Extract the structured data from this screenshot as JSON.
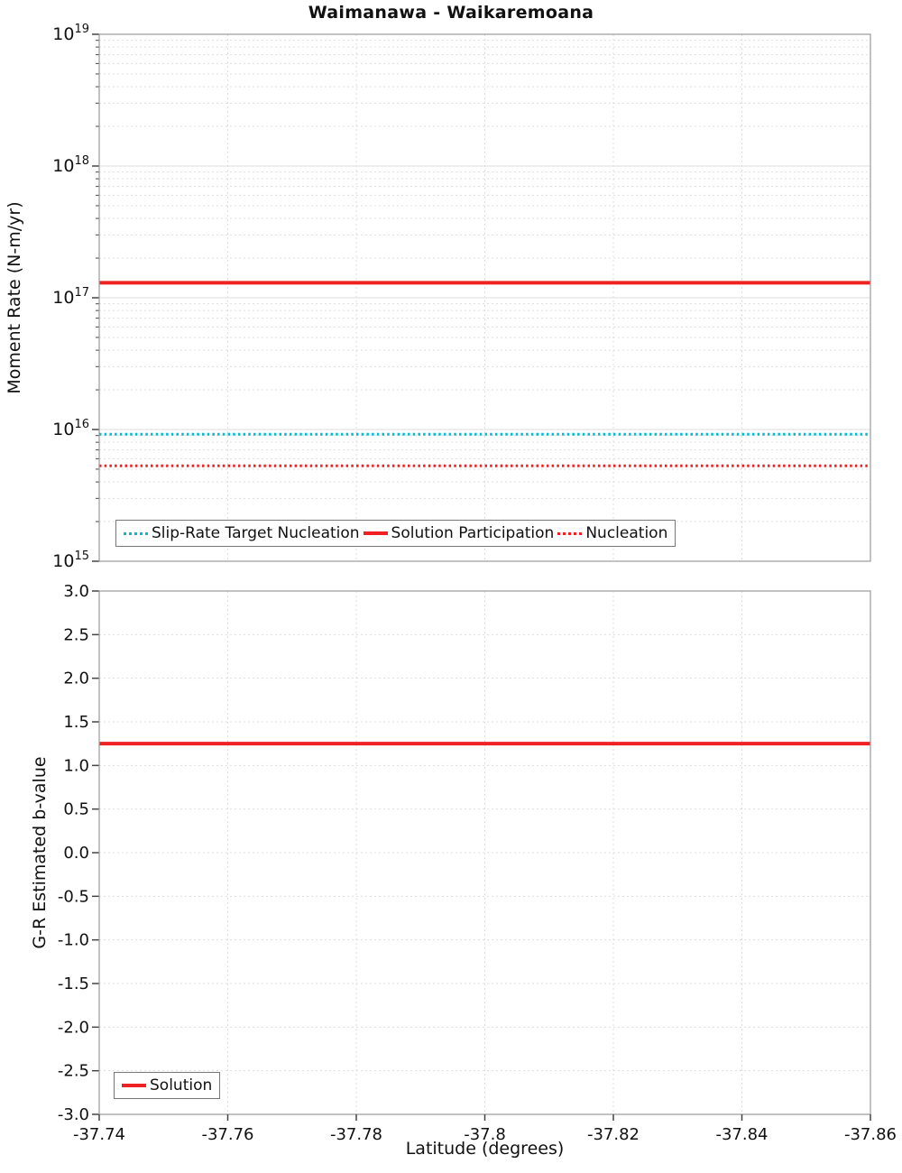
{
  "chart_data": [
    {
      "type": "line",
      "title": "Waimanawa - Waikaremoana",
      "ylabel": "Moment Rate (N-m/yr)",
      "y_scale": "log",
      "ylim": [
        1000000000000000.0,
        1e+19
      ],
      "y_exp_range": [
        15,
        19
      ],
      "x_range": [
        -37.74,
        -37.86
      ],
      "legend_position": "bottom-inside",
      "grid": true,
      "series": [
        {
          "name": "Slip-Rate Target Nucleation",
          "style": "dotted",
          "color": "#00bcd4",
          "value": 9200000000000000.0
        },
        {
          "name": "Solution Participation",
          "style": "solid",
          "color": "#ee2222",
          "value": 1.3e+17
        },
        {
          "name": "Nucleation",
          "style": "dotted",
          "color": "#ee2222",
          "value": 5300000000000000.0
        }
      ]
    },
    {
      "type": "line",
      "ylabel": "G-R Estimated b-value",
      "xlabel": "Latitude (degrees)",
      "ylim": [
        3.0,
        -3.0
      ],
      "y_tick_step": 0.5,
      "y_tick_labels": [
        "3.0",
        "2.5",
        "2.0",
        "1.5",
        "1.0",
        "0.5",
        "0.0",
        "-0.5",
        "-1.0",
        "-1.5",
        "-2.0",
        "-2.5",
        "-3.0"
      ],
      "x_ticks": [
        -37.74,
        -37.76,
        -37.78,
        -37.8,
        -37.82,
        -37.84,
        -37.86
      ],
      "x_tick_labels": [
        "-37.74",
        "-37.76",
        "-37.78",
        "-37.8",
        "-37.82",
        "-37.84",
        "-37.86"
      ],
      "legend_position": "bottom-left-inside",
      "grid": true,
      "series": [
        {
          "name": "Solution",
          "style": "solid",
          "color": "#ee2222",
          "value": 1.25
        }
      ]
    }
  ],
  "colors": {
    "solution_red": "#ee2222",
    "target_cyan": "#00bcd4",
    "grid": "#dddddd",
    "axis_border": "#9a9a9a",
    "tick": "#444444"
  }
}
